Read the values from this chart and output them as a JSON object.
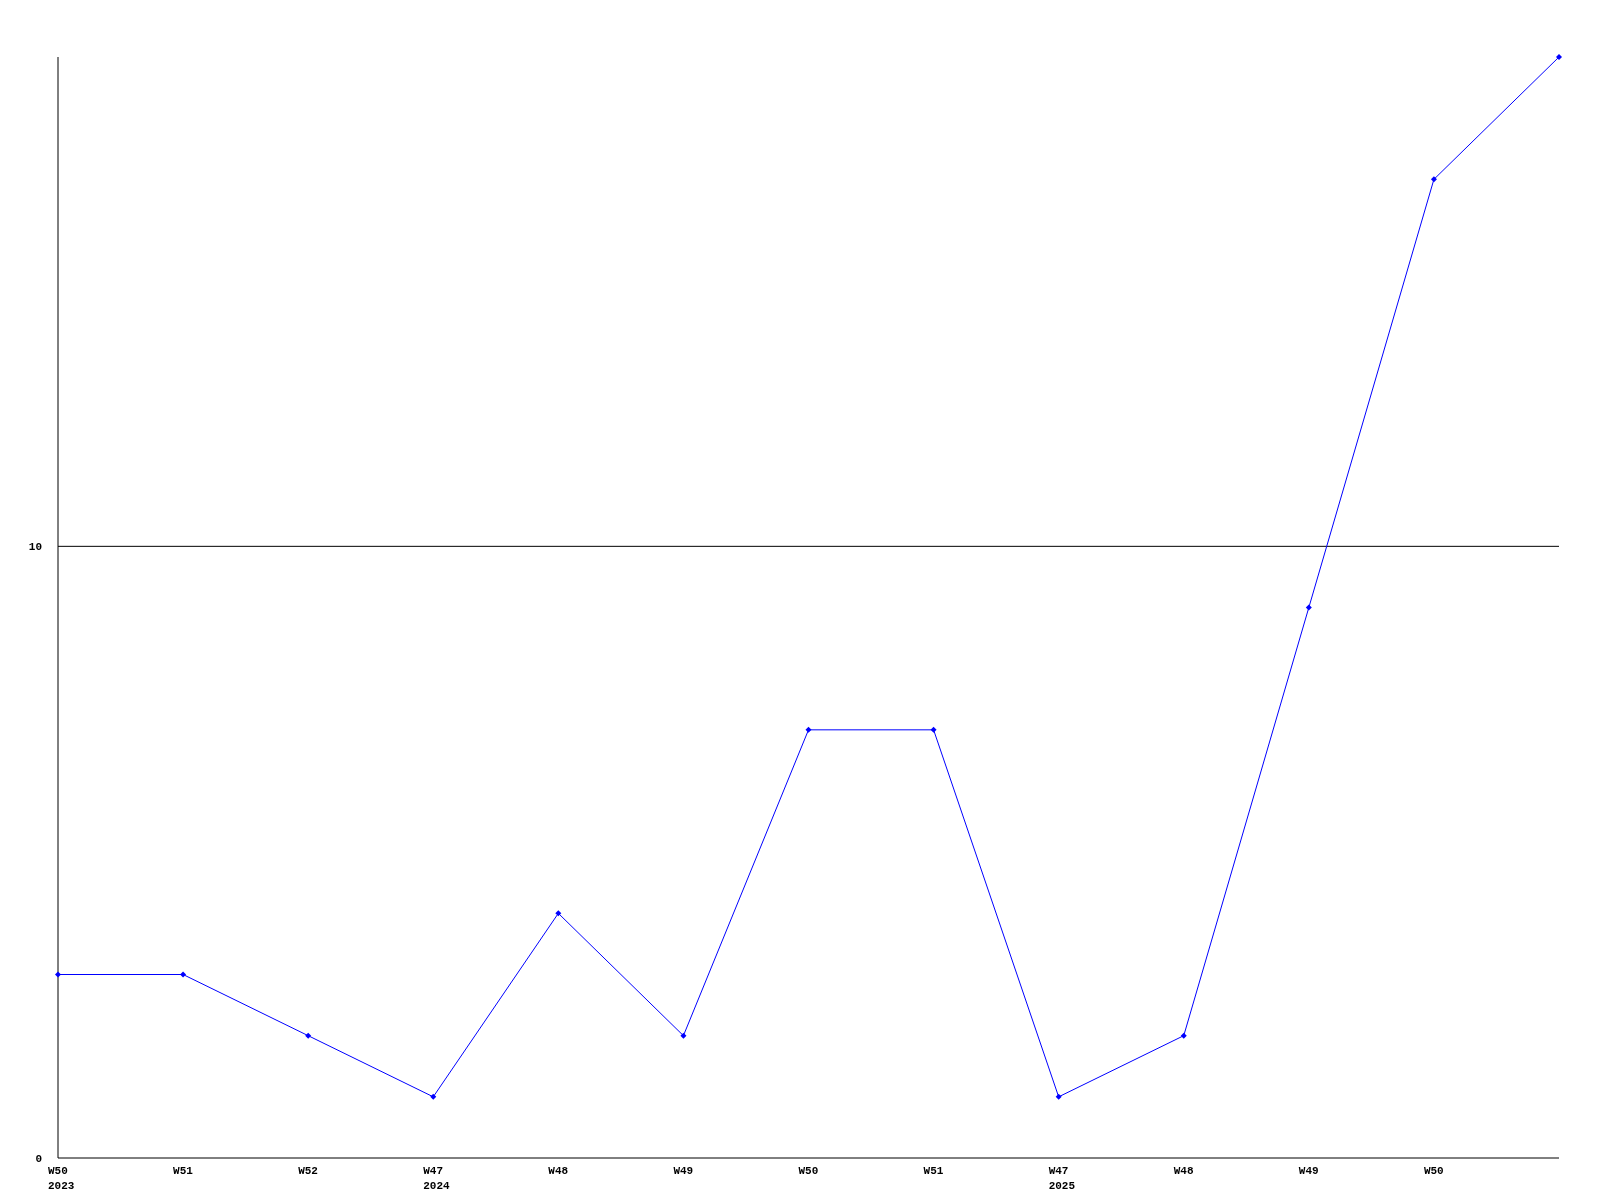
{
  "chart_data": {
    "type": "line",
    "categories": [
      "W50\n2023",
      "W51",
      "W52",
      "W47\n2024",
      "W48",
      "W49",
      "W50",
      "W51",
      "W47\n2025",
      "W48",
      "W49",
      "W50",
      null
    ],
    "series": [
      {
        "color": "#0000ff",
        "values": [
          3,
          3,
          2,
          1,
          4,
          2,
          7,
          7,
          1,
          2,
          9,
          16,
          18
        ]
      }
    ],
    "ylim": [
      0,
      18
    ],
    "yticks": [
      0,
      10
    ],
    "grid": "y",
    "marker": "diamond",
    "line_style": "solid"
  }
}
